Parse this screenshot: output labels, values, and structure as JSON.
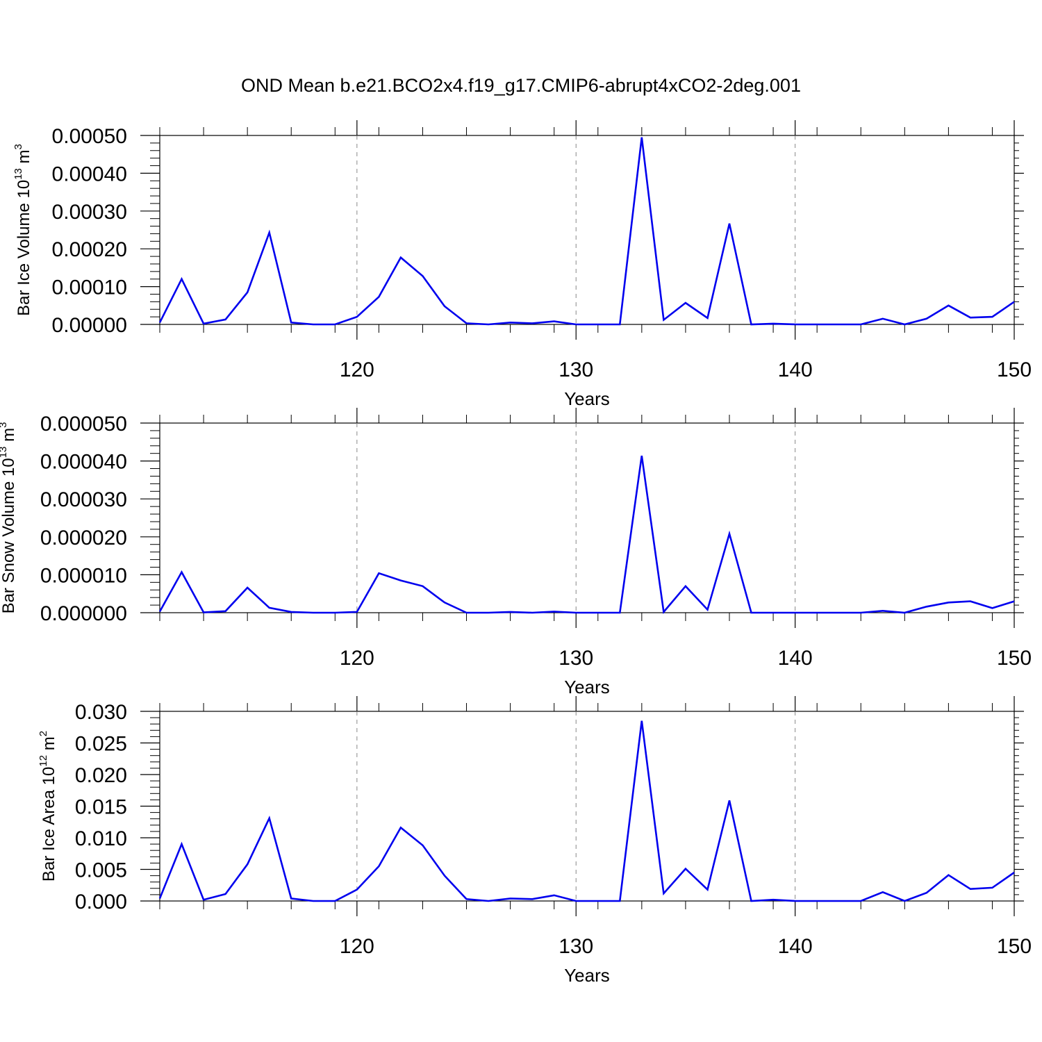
{
  "figure": {
    "title": "OND Mean b.e21.BCO2x4.f19_g17.CMIP6-abrupt4xCO2-2deg.001",
    "line_color": "#0000ee"
  },
  "chart_data": [
    {
      "type": "line",
      "xlabel": "Years",
      "ylabel": {
        "text": "Bar Ice Volume 10",
        "exp": "13",
        "unit": " m",
        "unit_exp": "3"
      },
      "xlim": [
        111,
        150
      ],
      "ylim": [
        0,
        0.0005
      ],
      "grid": "vertical dashed at major x ticks",
      "xticks": [
        120,
        130,
        140,
        150
      ],
      "xtick_labels": [
        "120",
        "130",
        "140",
        "150"
      ],
      "yticks": [
        0,
        0.0001,
        0.0002,
        0.0003,
        0.0004,
        0.0005
      ],
      "ytick_labels": [
        "0.00000",
        "0.00010",
        "0.00020",
        "0.00030",
        "0.00040",
        "0.00050"
      ],
      "x": [
        111,
        112,
        113,
        114,
        115,
        116,
        117,
        118,
        119,
        120,
        121,
        122,
        123,
        124,
        125,
        126,
        127,
        128,
        129,
        130,
        131,
        132,
        133,
        134,
        135,
        136,
        137,
        138,
        139,
        140,
        141,
        142,
        143,
        144,
        145,
        146,
        147,
        148,
        149,
        150
      ],
      "series": [
        {
          "values": [
            5e-06,
            0.00012,
            2e-06,
            1.3e-05,
            8.5e-05,
            0.000243,
            5e-06,
            0.0,
            0.0,
            2e-05,
            7.3e-05,
            0.000177,
            0.000128,
            4.8e-05,
            3e-06,
            0.0,
            5e-06,
            3e-06,
            8e-06,
            0.0,
            0.0,
            0.0,
            0.000495,
            1.2e-05,
            5.7e-05,
            1.7e-05,
            0.000267,
            0.0,
            2e-06,
            0.0,
            0.0,
            0.0,
            0.0,
            1.5e-05,
            0.0,
            1.5e-05,
            5e-05,
            1.8e-05,
            2e-05,
            6e-05
          ]
        }
      ]
    },
    {
      "type": "line",
      "xlabel": "Years",
      "ylabel": {
        "text": "Bar Snow Volume 10",
        "exp": "13",
        "unit": " m",
        "unit_exp": "3"
      },
      "xlim": [
        111,
        150
      ],
      "ylim": [
        0,
        5e-05
      ],
      "grid": "vertical dashed at major x ticks",
      "xticks": [
        120,
        130,
        140,
        150
      ],
      "xtick_labels": [
        "120",
        "130",
        "140",
        "150"
      ],
      "yticks": [
        0,
        1e-05,
        2e-05,
        3e-05,
        4e-05,
        5e-05
      ],
      "ytick_labels": [
        "0.000000",
        "0.000010",
        "0.000020",
        "0.000030",
        "0.000040",
        "0.000050"
      ],
      "x": [
        111,
        112,
        113,
        114,
        115,
        116,
        117,
        118,
        119,
        120,
        121,
        122,
        123,
        124,
        125,
        126,
        127,
        128,
        129,
        130,
        131,
        132,
        133,
        134,
        135,
        136,
        137,
        138,
        139,
        140,
        141,
        142,
        143,
        144,
        145,
        146,
        147,
        148,
        149,
        150
      ],
      "series": [
        {
          "values": [
            3e-07,
            1.07e-05,
            1e-07,
            4e-07,
            6.6e-06,
            1.3e-06,
            2e-07,
            0.0,
            0.0,
            2e-07,
            1.04e-05,
            8.5e-06,
            7e-06,
            2.7e-06,
            0.0,
            0.0,
            2e-07,
            0.0,
            3e-07,
            0.0,
            0.0,
            0.0,
            4.14e-05,
            2e-07,
            7e-06,
            8e-07,
            2.08e-05,
            0.0,
            0.0,
            0.0,
            0.0,
            0.0,
            0.0,
            5e-07,
            0.0,
            1.6e-06,
            2.7e-06,
            3e-06,
            1.2e-06,
            3e-06
          ]
        }
      ]
    },
    {
      "type": "line",
      "xlabel": "Years",
      "ylabel": {
        "text": "Bar Ice Area 10",
        "exp": "12",
        "unit": " m",
        "unit_exp": "2"
      },
      "xlim": [
        111,
        150
      ],
      "ylim": [
        0,
        0.03
      ],
      "grid": "vertical dashed at major x ticks",
      "xticks": [
        120,
        130,
        140,
        150
      ],
      "xtick_labels": [
        "120",
        "130",
        "140",
        "150"
      ],
      "yticks": [
        0,
        0.005,
        0.01,
        0.015,
        0.02,
        0.025,
        0.03
      ],
      "ytick_labels": [
        "0.000",
        "0.005",
        "0.010",
        "0.015",
        "0.020",
        "0.025",
        "0.030"
      ],
      "x": [
        111,
        112,
        113,
        114,
        115,
        116,
        117,
        118,
        119,
        120,
        121,
        122,
        123,
        124,
        125,
        126,
        127,
        128,
        129,
        130,
        131,
        132,
        133,
        134,
        135,
        136,
        137,
        138,
        139,
        140,
        141,
        142,
        143,
        144,
        145,
        146,
        147,
        148,
        149,
        150
      ],
      "series": [
        {
          "values": [
            0.0004,
            0.009,
            0.0002,
            0.0011,
            0.0058,
            0.0131,
            0.0004,
            0.0,
            0.0,
            0.0018,
            0.0055,
            0.0116,
            0.0088,
            0.004,
            0.0003,
            0.0,
            0.0004,
            0.0003,
            0.0009,
            0.0,
            0.0,
            0.0,
            0.0285,
            0.0012,
            0.0051,
            0.0018,
            0.0159,
            0.0,
            0.0002,
            0.0,
            0.0,
            0.0,
            0.0,
            0.0014,
            0.0,
            0.0013,
            0.0041,
            0.0019,
            0.0021,
            0.0045
          ]
        }
      ]
    }
  ]
}
